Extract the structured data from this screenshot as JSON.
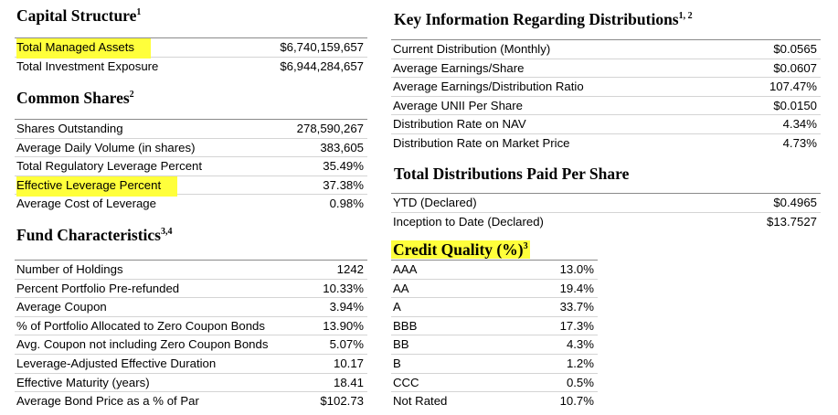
{
  "capital_structure": {
    "title": "Capital Structure",
    "sup": "1",
    "rows": [
      {
        "label": "Total Managed Assets",
        "value": "$6,740,159,657"
      },
      {
        "label": "Total Investment Exposure",
        "value": "$6,944,284,657"
      }
    ]
  },
  "common_shares": {
    "title": "Common Shares",
    "sup": "2",
    "rows": [
      {
        "label": "Shares Outstanding",
        "value": "278,590,267"
      },
      {
        "label": "Average Daily Volume (in shares)",
        "value": "383,605"
      },
      {
        "label": "Total Regulatory Leverage Percent",
        "value": "35.49%"
      },
      {
        "label": "Effective Leverage Percent",
        "value": "37.38%"
      },
      {
        "label": "Average Cost of Leverage",
        "value": "0.98%"
      }
    ]
  },
  "fund_characteristics": {
    "title": "Fund Characteristics",
    "sup": "3,4",
    "rows": [
      {
        "label": "Number of Holdings",
        "value": "1242"
      },
      {
        "label": "Percent Portfolio Pre-refunded",
        "value": "10.33%"
      },
      {
        "label": "Average Coupon",
        "value": "3.94%"
      },
      {
        "label": "% of Portfolio Allocated to Zero Coupon Bonds",
        "value": "13.90%"
      },
      {
        "label": "Avg. Coupon not including Zero Coupon Bonds",
        "value": "5.07%"
      },
      {
        "label": "Leverage-Adjusted Effective Duration",
        "value": "10.17"
      },
      {
        "label": "Effective Maturity (years)",
        "value": "18.41"
      },
      {
        "label": "Average Bond Price as a % of Par",
        "value": "$102.73"
      }
    ]
  },
  "key_information": {
    "title": "Key Information Regarding Distributions",
    "sup": "1, 2",
    "rows": [
      {
        "label": "Current Distribution (Monthly)",
        "value": "$0.0565"
      },
      {
        "label": "Average Earnings/Share",
        "value": "$0.0607"
      },
      {
        "label": "Average Earnings/Distribution Ratio",
        "value": "107.47%"
      },
      {
        "label": "Average UNII Per Share",
        "value": "$0.0150"
      },
      {
        "label": "Distribution Rate on NAV",
        "value": "4.34%"
      },
      {
        "label": "Distribution Rate on Market Price",
        "value": "4.73%"
      }
    ]
  },
  "total_distributions": {
    "title": "Total Distributions Paid Per Share",
    "rows": [
      {
        "label": "YTD (Declared)",
        "value": "$0.4965"
      },
      {
        "label": "Inception to Date (Declared)",
        "value": "$13.7527"
      }
    ]
  },
  "credit_quality": {
    "title": "Credit Quality (%)",
    "sup": "3",
    "rows": [
      {
        "label": "AAA",
        "value": "13.0%"
      },
      {
        "label": "AA",
        "value": "19.4%"
      },
      {
        "label": "A",
        "value": "33.7%"
      },
      {
        "label": "BBB",
        "value": "17.3%"
      },
      {
        "label": "BB",
        "value": "4.3%"
      },
      {
        "label": "B",
        "value": "1.2%"
      },
      {
        "label": "CCC",
        "value": "0.5%"
      },
      {
        "label": "Not Rated",
        "value": "10.7%"
      }
    ]
  },
  "highlight_color": "#ffff3b"
}
